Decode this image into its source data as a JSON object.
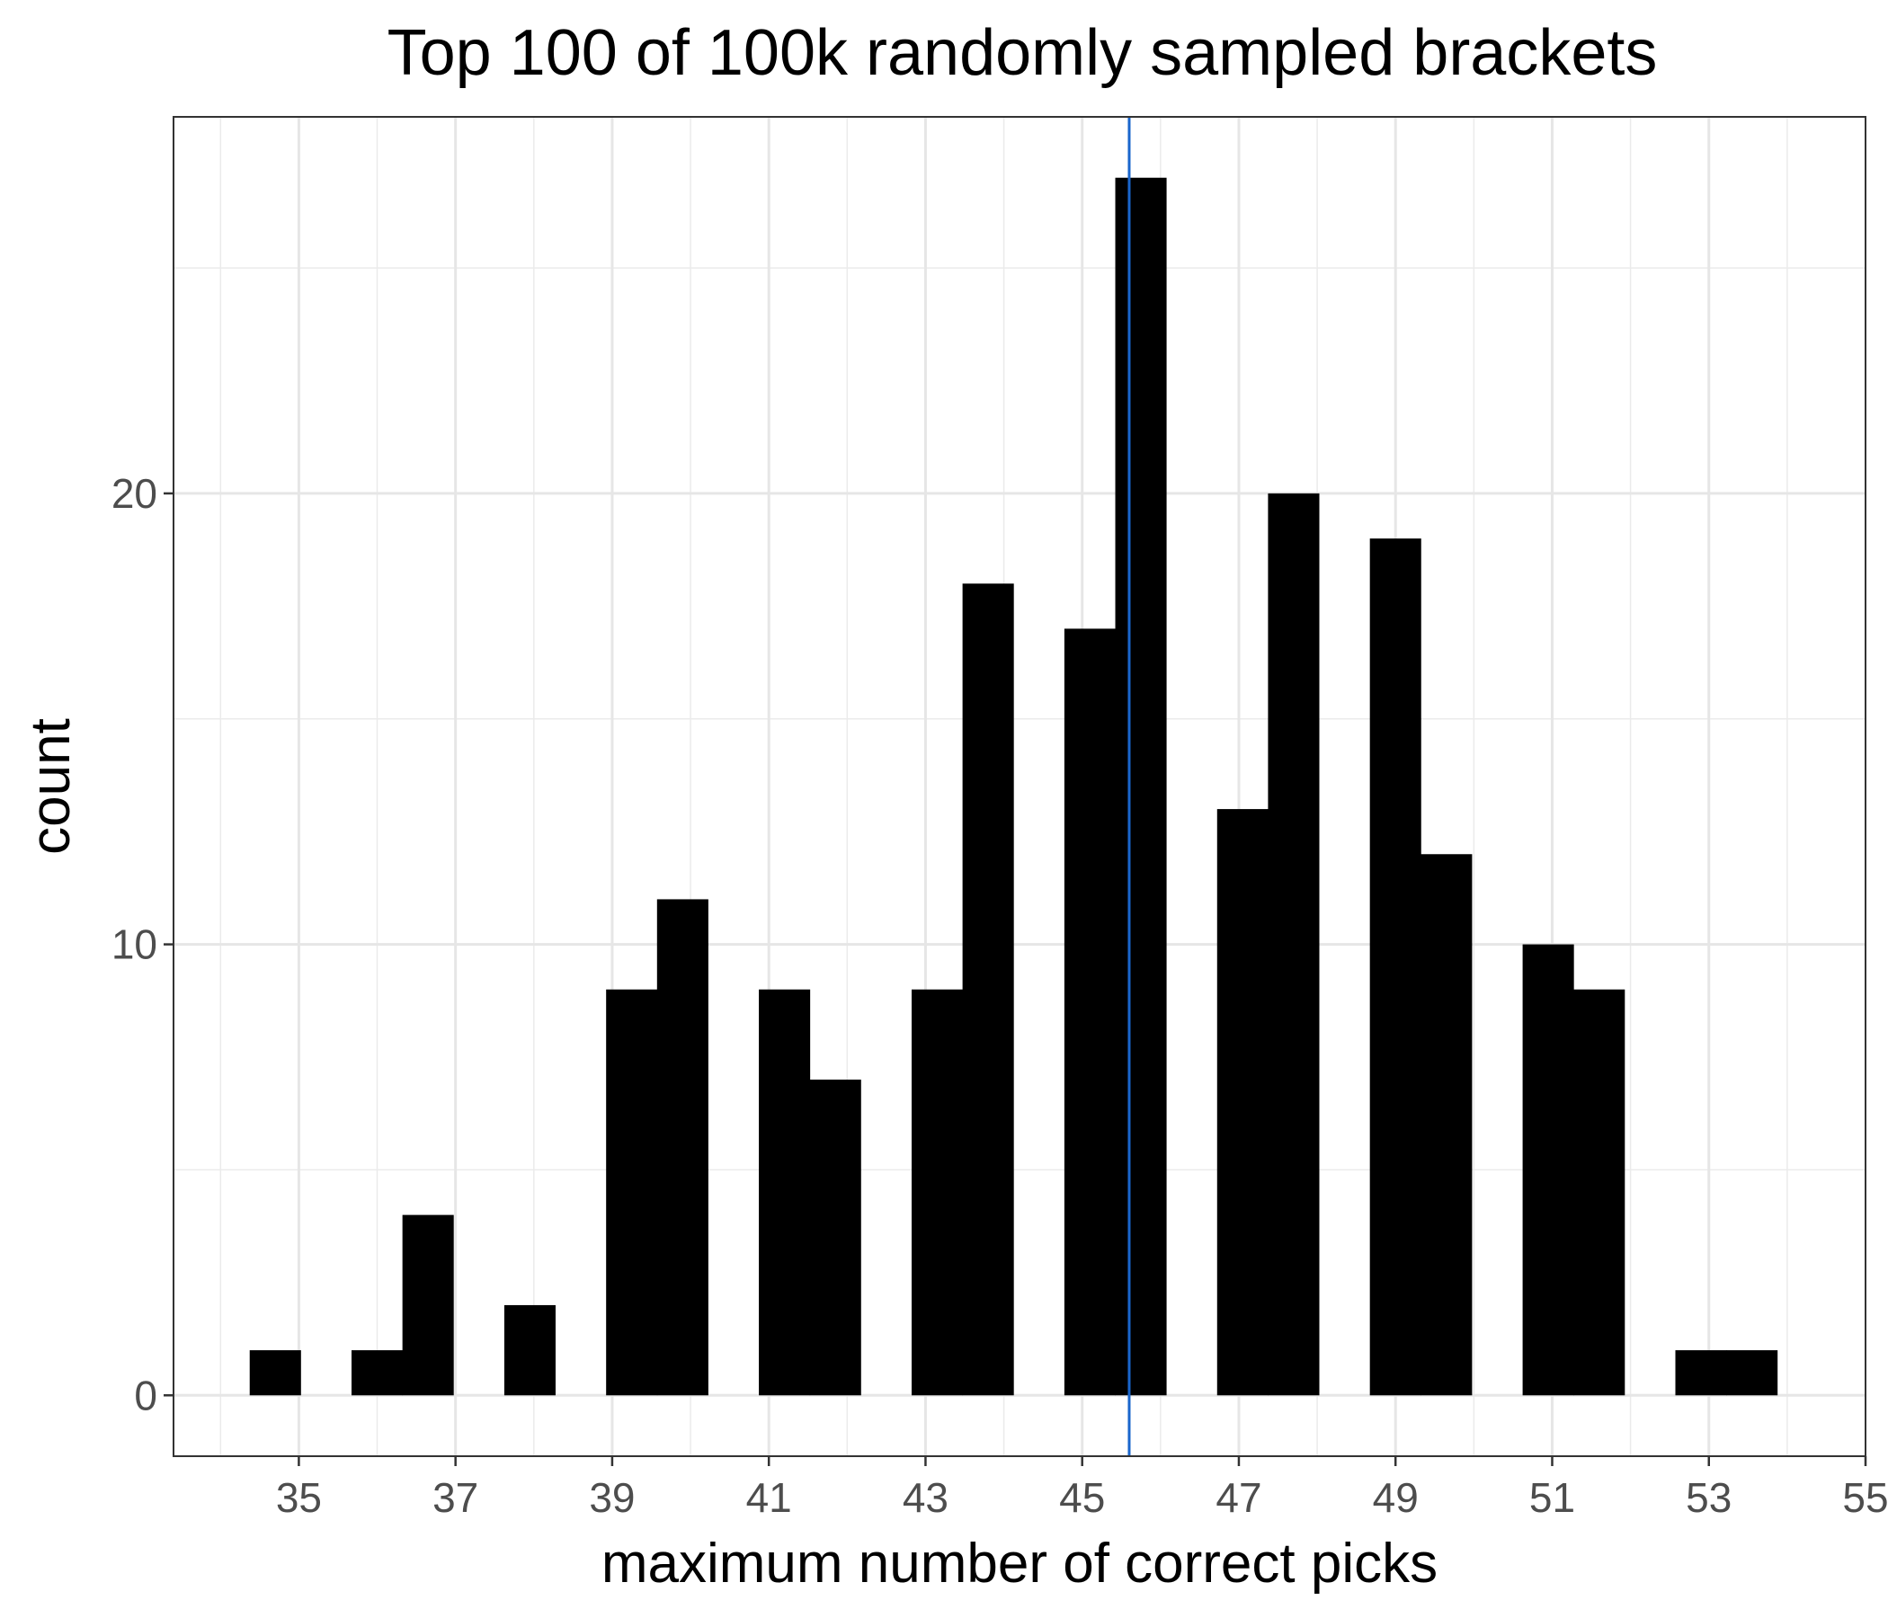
{
  "chart_data": {
    "type": "bar",
    "title": "Top 100 of 100k randomly sampled brackets",
    "xlabel": "maximum number of correct picks",
    "ylabel": "count",
    "bin_width": 0.655,
    "bins": [
      {
        "x": 34.7,
        "count": 1
      },
      {
        "x": 36.0,
        "count": 1
      },
      {
        "x": 36.65,
        "count": 4
      },
      {
        "x": 37.95,
        "count": 2
      },
      {
        "x": 39.25,
        "count": 9
      },
      {
        "x": 39.9,
        "count": 11
      },
      {
        "x": 41.2,
        "count": 9
      },
      {
        "x": 41.85,
        "count": 7
      },
      {
        "x": 43.15,
        "count": 9
      },
      {
        "x": 43.8,
        "count": 18
      },
      {
        "x": 45.1,
        "count": 17
      },
      {
        "x": 45.75,
        "count": 27
      },
      {
        "x": 47.05,
        "count": 13
      },
      {
        "x": 47.7,
        "count": 20
      },
      {
        "x": 49.0,
        "count": 19
      },
      {
        "x": 49.65,
        "count": 12
      },
      {
        "x": 50.95,
        "count": 10
      },
      {
        "x": 51.6,
        "count": 9
      },
      {
        "x": 52.9,
        "count": 1
      },
      {
        "x": 53.55,
        "count": 1
      }
    ],
    "vline": {
      "x": 45.6,
      "color": "#1a66cc"
    },
    "xlim": [
      33.4,
      55.0
    ],
    "ylim": [
      -1.35,
      28.35
    ],
    "x_ticks": [
      35,
      37,
      39,
      41,
      43,
      45,
      47,
      49,
      51,
      53,
      55
    ],
    "y_ticks": [
      0,
      10,
      20
    ],
    "grid": true,
    "bar_color": "#000000"
  }
}
